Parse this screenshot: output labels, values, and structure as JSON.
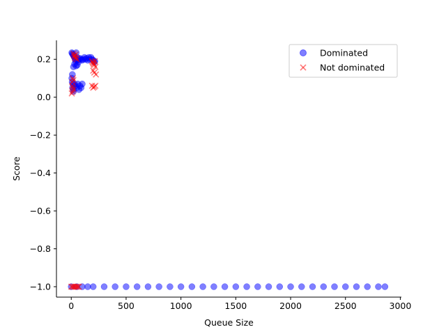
{
  "chart_data": {
    "type": "scatter",
    "title": "",
    "xlabel": "Queue Size",
    "ylabel": "Score",
    "xlim": [
      -135,
      3010
    ],
    "ylim": [
      -1.055,
      0.3
    ],
    "xticks": [
      0,
      500,
      1000,
      1500,
      2000,
      2500,
      3000
    ],
    "yticks": [
      -1.0,
      -0.8,
      -0.6,
      -0.4,
      -0.2,
      0.0,
      0.2
    ],
    "xtick_labels": [
      "0",
      "500",
      "1000",
      "1500",
      "2000",
      "2500",
      "3000"
    ],
    "ytick_labels": [
      "−1.0",
      "−0.8",
      "−0.6",
      "−0.4",
      "−0.2",
      "0.0",
      "0.2"
    ],
    "grid": false,
    "legend_position": "top-right",
    "series": [
      {
        "name": "Dominated",
        "marker": "circle",
        "color": "#0000ff",
        "alpha": 0.5,
        "points": [
          [
            5,
            0.235
          ],
          [
            10,
            0.23
          ],
          [
            15,
            0.225
          ],
          [
            20,
            0.22
          ],
          [
            25,
            0.215
          ],
          [
            30,
            0.21
          ],
          [
            35,
            0.2
          ],
          [
            40,
            0.19
          ],
          [
            45,
            0.235
          ],
          [
            50,
            0.2
          ],
          [
            55,
            0.21
          ],
          [
            60,
            0.195
          ],
          [
            70,
            0.2
          ],
          [
            80,
            0.205
          ],
          [
            90,
            0.2
          ],
          [
            100,
            0.195
          ],
          [
            110,
            0.2
          ],
          [
            120,
            0.21
          ],
          [
            130,
            0.2
          ],
          [
            140,
            0.205
          ],
          [
            150,
            0.195
          ],
          [
            160,
            0.21
          ],
          [
            170,
            0.2
          ],
          [
            180,
            0.21
          ],
          [
            190,
            0.2
          ],
          [
            200,
            0.195
          ],
          [
            210,
            0.185
          ],
          [
            215,
            0.19
          ],
          [
            5,
            0.1
          ],
          [
            8,
            0.08
          ],
          [
            10,
            0.12
          ],
          [
            12,
            0.05
          ],
          [
            15,
            0.07
          ],
          [
            18,
            0.04
          ],
          [
            20,
            0.03
          ],
          [
            25,
            0.06
          ],
          [
            30,
            0.07
          ],
          [
            40,
            0.06
          ],
          [
            50,
            0.05
          ],
          [
            60,
            0.07
          ],
          [
            70,
            0.04
          ],
          [
            80,
            0.06
          ],
          [
            90,
            0.05
          ],
          [
            100,
            0.07
          ],
          [
            20,
            0.16
          ],
          [
            30,
            0.175
          ],
          [
            45,
            0.165
          ],
          [
            55,
            0.17
          ],
          [
            65,
            0.185
          ],
          [
            0,
            -1.0
          ],
          [
            50,
            -1.0
          ],
          [
            100,
            -1.0
          ],
          [
            150,
            -1.0
          ],
          [
            200,
            -1.0
          ],
          [
            300,
            -1.0
          ],
          [
            400,
            -1.0
          ],
          [
            500,
            -1.0
          ],
          [
            600,
            -1.0
          ],
          [
            700,
            -1.0
          ],
          [
            800,
            -1.0
          ],
          [
            900,
            -1.0
          ],
          [
            1000,
            -1.0
          ],
          [
            1100,
            -1.0
          ],
          [
            1200,
            -1.0
          ],
          [
            1300,
            -1.0
          ],
          [
            1400,
            -1.0
          ],
          [
            1500,
            -1.0
          ],
          [
            1600,
            -1.0
          ],
          [
            1700,
            -1.0
          ],
          [
            1800,
            -1.0
          ],
          [
            1900,
            -1.0
          ],
          [
            2000,
            -1.0
          ],
          [
            2100,
            -1.0
          ],
          [
            2200,
            -1.0
          ],
          [
            2300,
            -1.0
          ],
          [
            2400,
            -1.0
          ],
          [
            2500,
            -1.0
          ],
          [
            2600,
            -1.0
          ],
          [
            2700,
            -1.0
          ],
          [
            2800,
            -1.0
          ],
          [
            2860,
            -1.0
          ]
        ]
      },
      {
        "name": "Not dominated",
        "marker": "x",
        "color": "#ff0000",
        "alpha": 0.5,
        "points": [
          [
            20,
            0.23
          ],
          [
            25,
            0.22
          ],
          [
            30,
            0.215
          ],
          [
            35,
            0.205
          ],
          [
            40,
            0.225
          ],
          [
            45,
            0.21
          ],
          [
            50,
            0.2
          ],
          [
            15,
            0.1
          ],
          [
            20,
            0.09
          ],
          [
            10,
            0.06
          ],
          [
            15,
            0.05
          ],
          [
            20,
            0.04
          ],
          [
            5,
            0.02
          ],
          [
            10,
            0.08
          ],
          [
            12,
            0.03
          ],
          [
            190,
            0.19
          ],
          [
            195,
            0.185
          ],
          [
            200,
            0.18
          ],
          [
            205,
            0.175
          ],
          [
            210,
            0.17
          ],
          [
            215,
            0.19
          ],
          [
            220,
            0.16
          ],
          [
            200,
            0.14
          ],
          [
            210,
            0.13
          ],
          [
            225,
            0.12
          ],
          [
            190,
            0.06
          ],
          [
            200,
            0.05
          ],
          [
            210,
            0.055
          ],
          [
            220,
            0.06
          ],
          [
            0,
            -1.0
          ],
          [
            10,
            -1.0
          ],
          [
            20,
            -1.0
          ],
          [
            30,
            -1.0
          ],
          [
            40,
            -1.0
          ],
          [
            50,
            -1.0
          ],
          [
            60,
            -1.0
          ],
          [
            70,
            -1.0
          ]
        ]
      }
    ]
  }
}
